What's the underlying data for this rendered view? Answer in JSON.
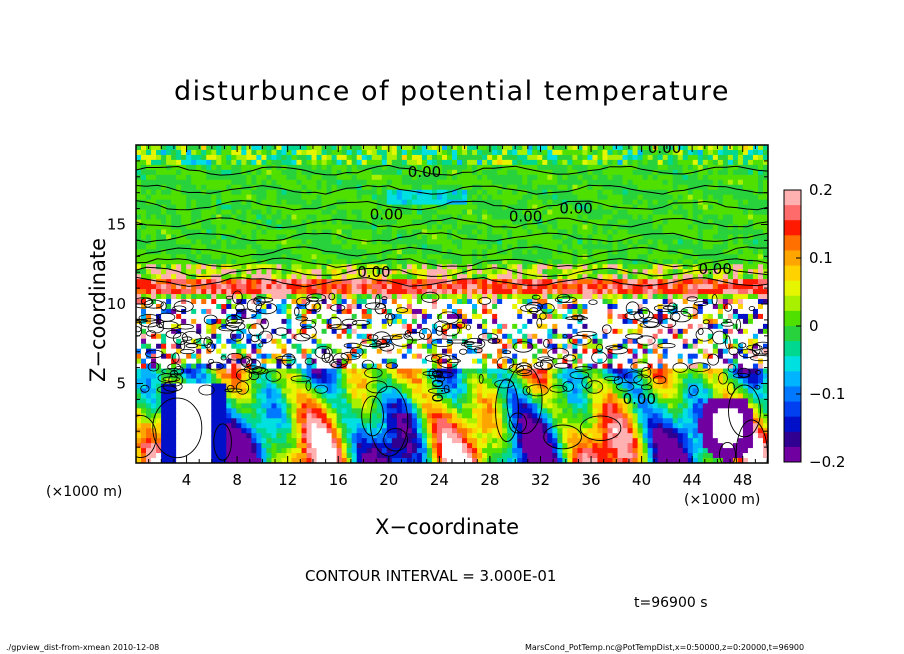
{
  "chart_data": {
    "type": "heatmap",
    "title": "disturbunce of potential temperature",
    "xlabel": "X−coordinate",
    "ylabel": "Z−coordinate",
    "x_unit_left": "(×1000 m)",
    "x_unit_right": "(×1000 m)",
    "xlim": [
      0,
      50
    ],
    "ylim": [
      0,
      20
    ],
    "x_ticks": [
      4,
      8,
      12,
      16,
      20,
      24,
      28,
      32,
      36,
      40,
      44,
      48
    ],
    "y_ticks": [
      5,
      10,
      15
    ],
    "colorbar": {
      "ticks": [
        0.2,
        0.1,
        0,
        -0.1,
        -0.2
      ],
      "tick_labels": [
        "0.2",
        "0.1",
        "0",
        "−0.1",
        "−0.2"
      ],
      "range": [
        -0.2,
        0.2
      ],
      "colors": [
        "#ffb0b0",
        "#ff6a6a",
        "#ff1a00",
        "#ff7000",
        "#ffa500",
        "#ffd200",
        "#e6f500",
        "#a8f000",
        "#50e000",
        "#28d23c",
        "#00d890",
        "#00e0e0",
        "#00b4ff",
        "#0078ff",
        "#0040f0",
        "#0010c8",
        "#300090",
        "#7000a0"
      ]
    },
    "contour_labels": [
      "0.00",
      "0.00",
      "0.00",
      "0.00",
      "0.00",
      "0.00",
      "0.00",
      "0.00",
      "0.00"
    ],
    "contour_interval": "CONTOUR INTERVAL = 3.000E-01",
    "time": "t=96900 s",
    "footer_left": "./gpview_dist-from-xmean   2010-12-08",
    "footer_right": "MarsCond_PotTemp.nc@PotTempDist,x=0:50000,z=0:20000,t=96900"
  }
}
